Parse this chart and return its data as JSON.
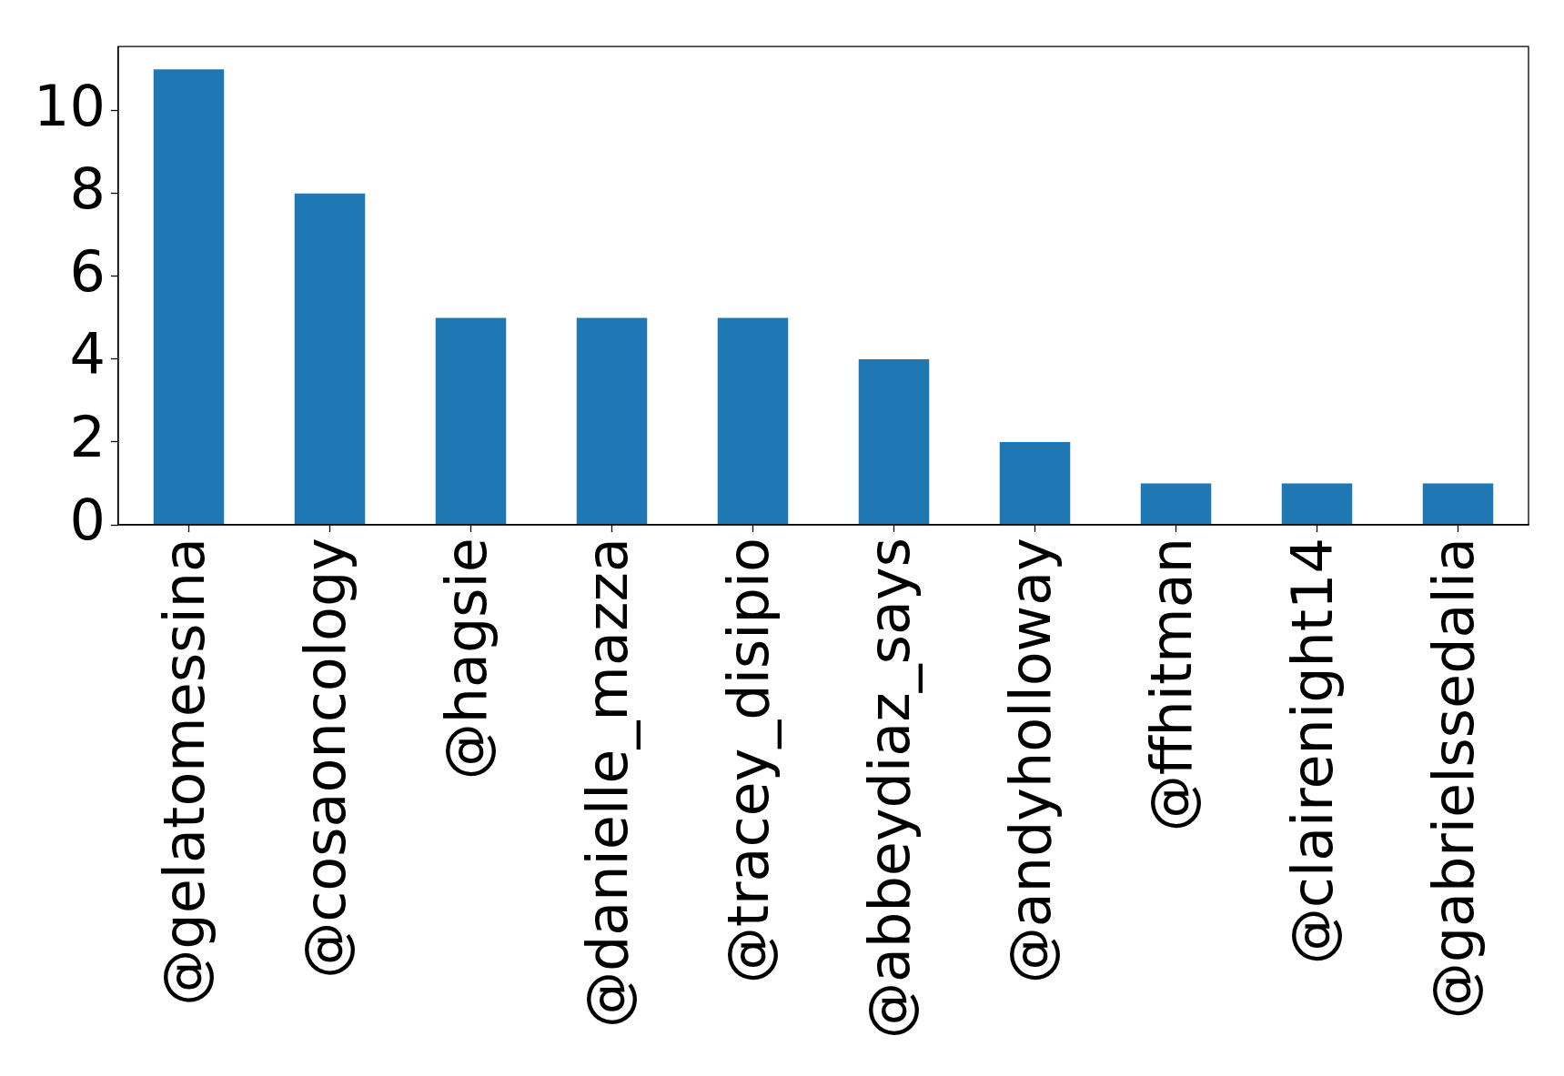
{
  "chart_data": {
    "type": "bar",
    "categories": [
      "@gelatomessina",
      "@cosaoncology",
      "@hagsie",
      "@danielle_mazza",
      "@tracey_disipio",
      "@abbeydiaz_says",
      "@andyholloway",
      "@ffhitman",
      "@clairenight14",
      "@gabrielssedalia"
    ],
    "values": [
      11,
      8,
      5,
      5,
      5,
      4,
      2,
      1,
      1,
      1
    ],
    "color": "#1f77b4",
    "ylim": [
      0,
      11.55
    ],
    "yticks": [
      0,
      2,
      4,
      6,
      8,
      10
    ],
    "grid": false
  }
}
